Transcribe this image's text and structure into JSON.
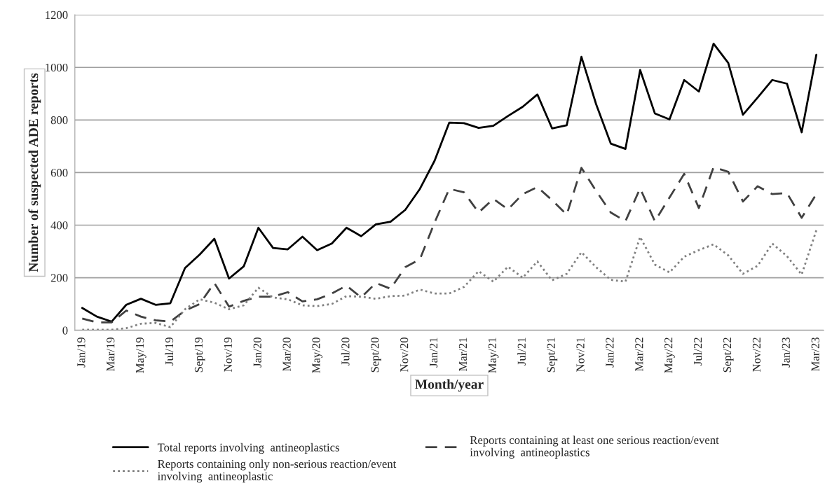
{
  "chart_data": {
    "type": "line",
    "xlabel": "Month/year",
    "ylabel": "Number of suspected ADE reports",
    "categories": [
      "Jan/19",
      null,
      "Mar/19",
      null,
      "May/19",
      null,
      "Jul/19",
      null,
      "Sept/19",
      null,
      "Nov/19",
      null,
      "Jan/20",
      null,
      "Mar/20",
      null,
      "May/20",
      null,
      "Jul/20",
      null,
      "Sept/20",
      null,
      "Nov/20",
      null,
      "Jan/21",
      null,
      "Mar/21",
      null,
      "May/21",
      null,
      "Jul/21",
      null,
      "Sept/21",
      null,
      "Nov/21",
      null,
      "Jan/22",
      null,
      "Mar/22",
      null,
      "May/22",
      null,
      "Jul/22",
      null,
      "Sept/22",
      null,
      "Nov/22",
      null,
      "Jan/23",
      null,
      "Mar/23"
    ],
    "series": [
      {
        "name": "Total reports involving  antineoplastics",
        "color": "#000000",
        "line_style": "solid",
        "values": [
          85,
          52,
          33,
          97,
          120,
          97,
          103,
          237,
          288,
          348,
          197,
          243,
          390,
          313,
          308,
          356,
          305,
          330,
          390,
          358,
          403,
          413,
          458,
          538,
          645,
          790,
          788,
          770,
          778,
          815,
          850,
          897,
          768,
          780,
          1040,
          860,
          710,
          690,
          990,
          825,
          802,
          952,
          908,
          1090,
          1017,
          820,
          885,
          952,
          938,
          753,
          1048
        ]
      },
      {
        "name": "Reports containing at least one serious reaction/event involving  antineoplastics",
        "color": "#404040",
        "line_style": "dashed",
        "values": [
          45,
          30,
          30,
          75,
          52,
          38,
          33,
          75,
          100,
          180,
          90,
          112,
          128,
          128,
          145,
          110,
          118,
          140,
          170,
          125,
          180,
          158,
          240,
          270,
          410,
          538,
          525,
          448,
          500,
          460,
          518,
          545,
          495,
          440,
          618,
          530,
          448,
          415,
          540,
          415,
          505,
          595,
          465,
          620,
          603,
          490,
          548,
          518,
          522,
          428,
          518
        ]
      },
      {
        "name": "Reports containing only non-serious reaction/event involving  antineoplastic",
        "color": "#808080",
        "line_style": "dotted",
        "values": [
          2,
          2,
          2,
          8,
          25,
          28,
          12,
          80,
          118,
          105,
          80,
          95,
          162,
          125,
          118,
          95,
          92,
          100,
          130,
          128,
          120,
          130,
          132,
          155,
          140,
          140,
          165,
          225,
          185,
          242,
          200,
          262,
          190,
          215,
          297,
          240,
          192,
          185,
          355,
          250,
          220,
          280,
          305,
          327,
          285,
          215,
          245,
          330,
          282,
          212,
          380
        ]
      }
    ],
    "ylim": [
      0,
      1200
    ],
    "yticks": [
      0,
      200,
      400,
      600,
      800,
      1000,
      1200
    ],
    "grid": "y",
    "legend": "bottom"
  }
}
